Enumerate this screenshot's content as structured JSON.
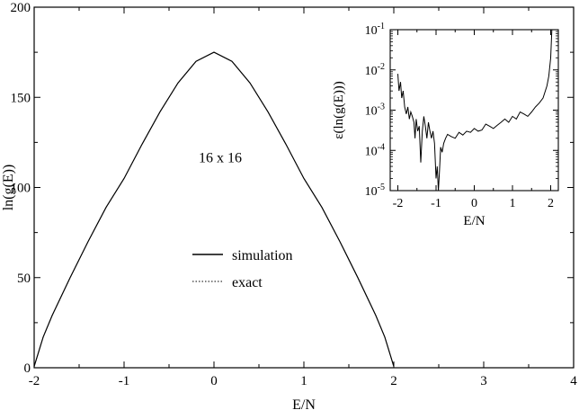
{
  "chart_data": [
    {
      "type": "line",
      "role": "main",
      "xlabel": "E/N",
      "ylabel": "ln(g(E))",
      "xlim": [
        -2,
        4
      ],
      "ylim": [
        0,
        200
      ],
      "xticks": [
        -2,
        -1,
        0,
        1,
        2,
        3,
        4
      ],
      "yticks": [
        0,
        50,
        100,
        150,
        200
      ],
      "xtick_labels": [
        "-2",
        "-1",
        "0",
        "1",
        "2",
        "3",
        "4"
      ],
      "ytick_labels": [
        "0",
        "50",
        "100",
        "150",
        "200"
      ],
      "grid": false,
      "annotation": "16 x 16",
      "legend": {
        "placement": "lower-center",
        "entries": [
          {
            "label": "simulation",
            "style": "solid"
          },
          {
            "label": "exact",
            "style": "dotted"
          }
        ]
      },
      "series": [
        {
          "name": "simulation",
          "style": "solid",
          "x": [
            -2.0,
            -1.9,
            -1.8,
            -1.6,
            -1.4,
            -1.2,
            -1.0,
            -0.8,
            -0.6,
            -0.4,
            -0.2,
            0.0,
            0.2,
            0.4,
            0.6,
            0.8,
            1.0,
            1.2,
            1.4,
            1.6,
            1.8,
            1.9,
            2.0
          ],
          "y": [
            0.7,
            17,
            29,
            50,
            70,
            89,
            105,
            124,
            142,
            158,
            170,
            175,
            170,
            158,
            142,
            124,
            105,
            89,
            70,
            50,
            29,
            17,
            0.7
          ]
        },
        {
          "name": "exact",
          "style": "dotted",
          "x": [
            -2.0,
            -1.9,
            -1.8,
            -1.6,
            -1.4,
            -1.2,
            -1.0,
            -0.8,
            -0.6,
            -0.4,
            -0.2,
            0.0,
            0.2,
            0.4,
            0.6,
            0.8,
            1.0,
            1.2,
            1.4,
            1.6,
            1.8,
            1.9,
            2.0
          ],
          "y": [
            0.7,
            17,
            29,
            50,
            70,
            89,
            105,
            124,
            142,
            158,
            170,
            175,
            170,
            158,
            142,
            124,
            105,
            89,
            70,
            50,
            29,
            17,
            0.7
          ]
        }
      ]
    },
    {
      "type": "line",
      "role": "inset",
      "xlabel": "E/N",
      "ylabel": "ε(ln(g(E)))",
      "xlim": [
        -2.2,
        2.2
      ],
      "ylim": [
        1e-05,
        0.1
      ],
      "yscale": "log",
      "xticks": [
        -2,
        -1,
        0,
        1,
        2
      ],
      "xtick_labels": [
        "-2",
        "-1",
        "0",
        "1",
        "2"
      ],
      "yticks": [
        1e-05,
        0.0001,
        0.001,
        0.01,
        0.1
      ],
      "ytick_labels": [
        {
          "base": "10",
          "exp": "-5"
        },
        {
          "base": "10",
          "exp": "-4"
        },
        {
          "base": "10",
          "exp": "-3"
        },
        {
          "base": "10",
          "exp": "-2"
        },
        {
          "base": "10",
          "exp": "-1"
        }
      ],
      "grid": false,
      "series": [
        {
          "style": "solid",
          "x": [
            -2.0,
            -1.97,
            -1.93,
            -1.9,
            -1.86,
            -1.82,
            -1.78,
            -1.74,
            -1.7,
            -1.66,
            -1.62,
            -1.58,
            -1.55,
            -1.52,
            -1.48,
            -1.44,
            -1.4,
            -1.36,
            -1.32,
            -1.28,
            -1.24,
            -1.2,
            -1.16,
            -1.12,
            -1.08,
            -1.04,
            -1.0,
            -0.97,
            -0.94,
            -0.91,
            -0.88,
            -0.84,
            -0.8,
            -0.75,
            -0.7,
            -0.6,
            -0.5,
            -0.4,
            -0.3,
            -0.2,
            -0.1,
            0.0,
            0.1,
            0.2,
            0.3,
            0.4,
            0.5,
            0.6,
            0.7,
            0.8,
            0.9,
            1.0,
            1.1,
            1.2,
            1.3,
            1.4,
            1.5,
            1.6,
            1.7,
            1.8,
            1.9,
            1.95,
            2.0,
            2.03
          ],
          "y": [
            0.008,
            0.003,
            0.005,
            0.002,
            0.003,
            0.0012,
            0.0008,
            0.0012,
            0.0006,
            0.0009,
            0.0007,
            0.0005,
            0.0002,
            0.0006,
            0.0003,
            0.0004,
            5e-05,
            0.0003,
            0.0007,
            0.0004,
            0.0002,
            0.0005,
            0.0003,
            0.0002,
            0.0003,
            0.00015,
            2e-05,
            4e-05,
            1e-05,
            3e-05,
            0.00012,
            9e-05,
            0.00015,
            0.0002,
            0.00025,
            0.00022,
            0.0002,
            0.00028,
            0.00024,
            0.0003,
            0.00028,
            0.00035,
            0.0003,
            0.00032,
            0.00045,
            0.0004,
            0.00035,
            0.00042,
            0.0005,
            0.0006,
            0.0005,
            0.0007,
            0.0006,
            0.0009,
            0.0008,
            0.0007,
            0.0009,
            0.0012,
            0.0015,
            0.002,
            0.004,
            0.007,
            0.02,
            0.1
          ]
        }
      ]
    }
  ]
}
